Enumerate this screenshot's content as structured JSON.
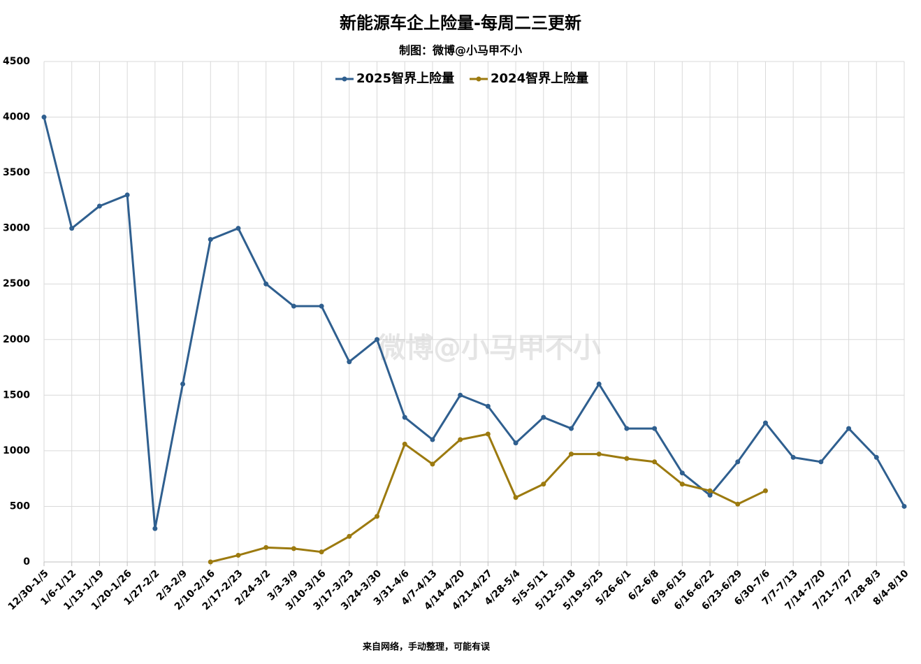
{
  "chart_data": {
    "type": "line",
    "title": "新能源车企上险量-每周二三更新",
    "subtitle": "制图：微博@小马甲不小",
    "footer": "来自网络，手动整理，可能有误",
    "watermark": "微博@小马甲不小",
    "categories": [
      "12/30-1/5",
      "1/6-1/12",
      "1/13-1/19",
      "1/20-1/26",
      "1/27-2/2",
      "2/3-2/9",
      "2/10-2/16",
      "2/17-2/23",
      "2/24-3/2",
      "3/3-3/9",
      "3/10-3/16",
      "3/17-3/23",
      "3/24-3/30",
      "3/31-4/6",
      "4/7-4/13",
      "4/14-4/20",
      "4/21-4/27",
      "4/28-5/4",
      "5/5-5/11",
      "5/12-5/18",
      "5/19-5/25",
      "5/26-6/1",
      "6/2-6/8",
      "6/9-6/15",
      "6/16-6/22",
      "6/23-6/29",
      "6/30-7/6",
      "7/7-7/13",
      "7/14-7/20",
      "7/21-7/27",
      "7/28-8/3",
      "8/4-8/10"
    ],
    "series": [
      {
        "name": "2025智界上险量",
        "color": "#2f5f8f",
        "values": [
          4000,
          3000,
          3200,
          3300,
          300,
          1600,
          2900,
          3000,
          2500,
          2300,
          2300,
          1800,
          2000,
          1300,
          1100,
          1500,
          1400,
          1070,
          1300,
          1200,
          1600,
          1200,
          1200,
          800,
          600,
          900,
          1250,
          940,
          900,
          1200,
          940,
          500
        ]
      },
      {
        "name": "2024智界上险量",
        "color": "#9c7a0f",
        "values": [
          null,
          null,
          null,
          null,
          null,
          null,
          0,
          60,
          130,
          120,
          90,
          230,
          410,
          1060,
          880,
          1100,
          1150,
          580,
          700,
          970,
          970,
          930,
          900,
          700,
          640,
          520,
          640,
          null,
          null,
          null,
          null,
          null
        ]
      }
    ],
    "ylim": [
      0,
      4500
    ],
    "yticks": [
      0,
      500,
      1000,
      1500,
      2000,
      2500,
      3000,
      3500,
      4000,
      4500
    ],
    "grid": true,
    "legend": "top"
  }
}
